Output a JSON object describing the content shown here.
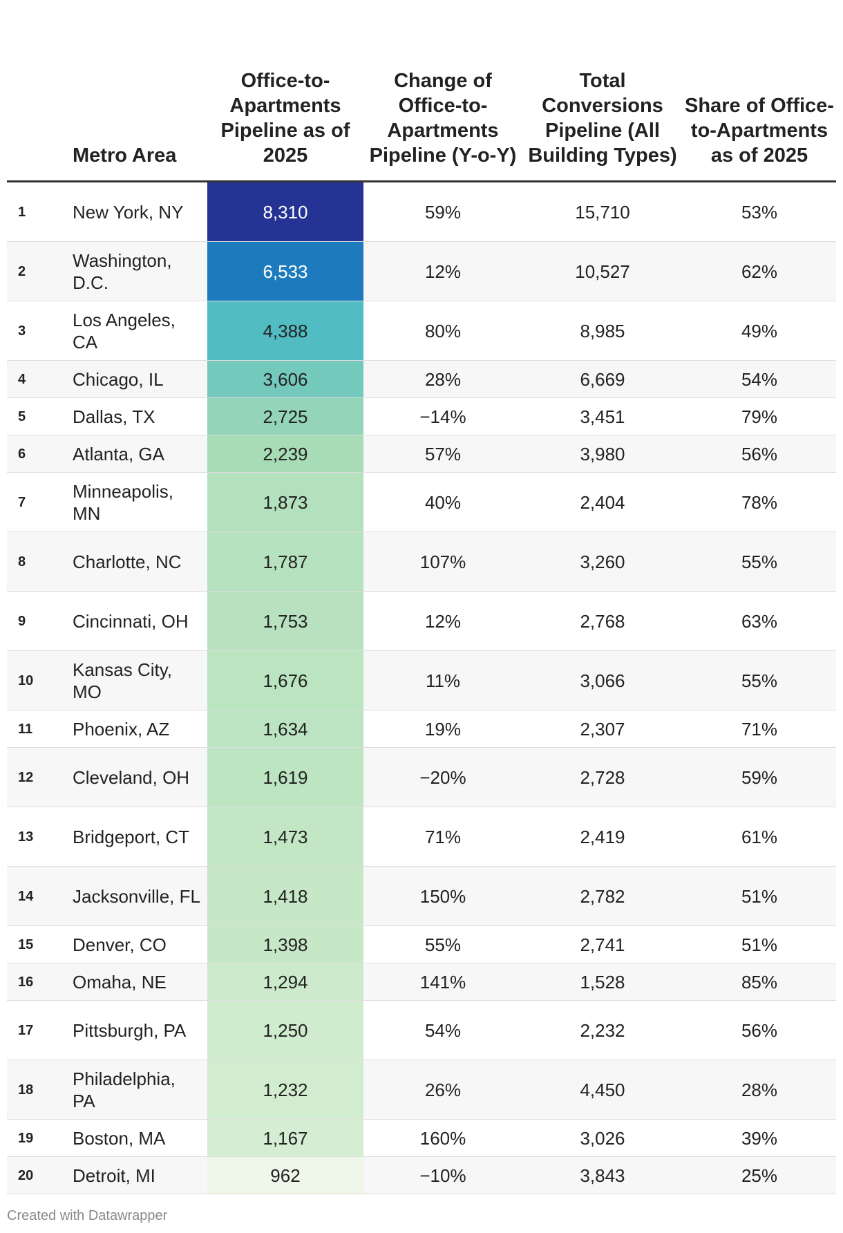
{
  "chart_data": {
    "type": "table",
    "columns": [
      "",
      "Metro Area",
      "Office-to-Apartments Pipeline as of 2025",
      "Change of Office-to-Apartments Pipeline (Y-o-Y)",
      "Total Conversions Pipeline (All Building Types)",
      "Share of Office-to-Apartments as of 2025"
    ],
    "heatmap_column": "Office-to-Apartments Pipeline as of 2025",
    "heatmap_colors": [
      "#eef7e8",
      "#c8e9c8",
      "#a8dcb7",
      "#7fcdbb",
      "#41b6c4",
      "#1d7fbf",
      "#253494"
    ],
    "rows": [
      {
        "rank": "1",
        "metro": "New York, NY",
        "pipeline": 8310,
        "pipeline_text": "8,310",
        "change": "59%",
        "total": "15,710",
        "share": "53%"
      },
      {
        "rank": "2",
        "metro": "Washington, D.C.",
        "pipeline": 6533,
        "pipeline_text": "6,533",
        "change": "12%",
        "total": "10,527",
        "share": "62%"
      },
      {
        "rank": "3",
        "metro": "Los Angeles, CA",
        "pipeline": 4388,
        "pipeline_text": "4,388",
        "change": "80%",
        "total": "8,985",
        "share": "49%"
      },
      {
        "rank": "4",
        "metro": "Chicago, IL",
        "pipeline": 3606,
        "pipeline_text": "3,606",
        "change": "28%",
        "total": "6,669",
        "share": "54%"
      },
      {
        "rank": "5",
        "metro": "Dallas, TX",
        "pipeline": 2725,
        "pipeline_text": "2,725",
        "change": "−14%",
        "total": "3,451",
        "share": "79%"
      },
      {
        "rank": "6",
        "metro": "Atlanta, GA",
        "pipeline": 2239,
        "pipeline_text": "2,239",
        "change": "57%",
        "total": "3,980",
        "share": "56%"
      },
      {
        "rank": "7",
        "metro": "Minneapolis, MN",
        "pipeline": 1873,
        "pipeline_text": "1,873",
        "change": "40%",
        "total": "2,404",
        "share": "78%"
      },
      {
        "rank": "8",
        "metro": "Charlotte, NC",
        "pipeline": 1787,
        "pipeline_text": "1,787",
        "change": "107%",
        "total": "3,260",
        "share": "55%"
      },
      {
        "rank": "9",
        "metro": "Cincinnati, OH",
        "pipeline": 1753,
        "pipeline_text": "1,753",
        "change": "12%",
        "total": "2,768",
        "share": "63%"
      },
      {
        "rank": "10",
        "metro": "Kansas City, MO",
        "pipeline": 1676,
        "pipeline_text": "1,676",
        "change": "11%",
        "total": "3,066",
        "share": "55%"
      },
      {
        "rank": "11",
        "metro": "Phoenix, AZ",
        "pipeline": 1634,
        "pipeline_text": "1,634",
        "change": "19%",
        "total": "2,307",
        "share": "71%"
      },
      {
        "rank": "12",
        "metro": "Cleveland, OH",
        "pipeline": 1619,
        "pipeline_text": "1,619",
        "change": "−20%",
        "total": "2,728",
        "share": "59%"
      },
      {
        "rank": "13",
        "metro": "Bridgeport, CT",
        "pipeline": 1473,
        "pipeline_text": "1,473",
        "change": "71%",
        "total": "2,419",
        "share": "61%"
      },
      {
        "rank": "14",
        "metro": "Jacksonville, FL",
        "pipeline": 1418,
        "pipeline_text": "1,418",
        "change": "150%",
        "total": "2,782",
        "share": "51%"
      },
      {
        "rank": "15",
        "metro": "Denver, CO",
        "pipeline": 1398,
        "pipeline_text": "1,398",
        "change": "55%",
        "total": "2,741",
        "share": "51%"
      },
      {
        "rank": "16",
        "metro": "Omaha, NE",
        "pipeline": 1294,
        "pipeline_text": "1,294",
        "change": "141%",
        "total": "1,528",
        "share": "85%"
      },
      {
        "rank": "17",
        "metro": "Pittsburgh, PA",
        "pipeline": 1250,
        "pipeline_text": "1,250",
        "change": "54%",
        "total": "2,232",
        "share": "56%"
      },
      {
        "rank": "18",
        "metro": "Philadelphia, PA",
        "pipeline": 1232,
        "pipeline_text": "1,232",
        "change": "26%",
        "total": "4,450",
        "share": "28%"
      },
      {
        "rank": "19",
        "metro": "Boston, MA",
        "pipeline": 1167,
        "pipeline_text": "1,167",
        "change": "160%",
        "total": "3,026",
        "share": "39%"
      },
      {
        "rank": "20",
        "metro": "Detroit, MI",
        "pipeline": 962,
        "pipeline_text": "962",
        "change": "−10%",
        "total": "3,843",
        "share": "25%"
      }
    ]
  },
  "footer": "Created with Datawrapper"
}
